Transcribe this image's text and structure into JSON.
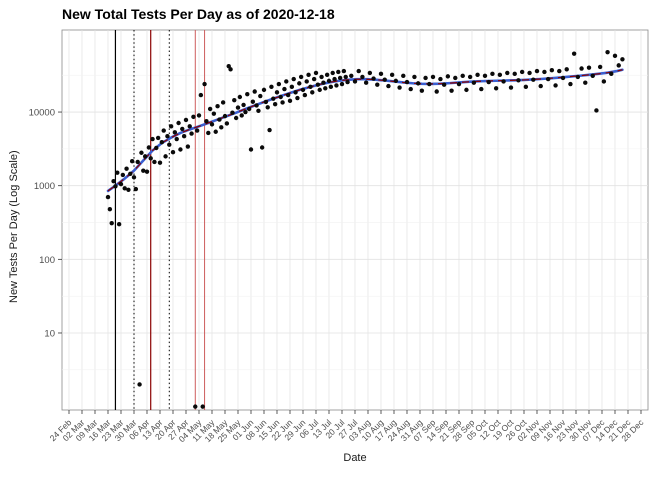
{
  "title": "New Total Tests Per Day as of 2020-12-18",
  "axes": {
    "x_label": "Date",
    "y_label": "New Tests Per Day (Log Scale)"
  },
  "colors": {
    "background": "#ffffff",
    "point": "#0a0a0a",
    "grid_major": "#e2e2e2",
    "grid_minor": "#f1f1f1",
    "panel_border": "#8a8a8a",
    "tick_mark": "#333333",
    "tick_text": "#4d4d4d",
    "smooth": "#3a5fd1",
    "overlay_dash": "#8b0000"
  },
  "chart_data": {
    "type": "scatter",
    "title": "New Total Tests Per Day as of 2020-12-18",
    "xlabel": "Date",
    "ylabel": "New Tests Per Day (Log Scale)",
    "y_scale": "log10",
    "ylim": [
      0.9,
      130000
    ],
    "grid": true,
    "legend": "none",
    "y_ticks": [
      {
        "value": 10,
        "label": "10"
      },
      {
        "value": 100,
        "label": "100"
      },
      {
        "value": 1000,
        "label": "1000"
      },
      {
        "value": 10000,
        "label": "10000"
      }
    ],
    "y_minor_grid": [
      3.162,
      31.62,
      316.2,
      3162,
      31623
    ],
    "x_range_days": [
      0,
      308
    ],
    "x_tick_step_days": 7,
    "x_tick_labels": [
      "24 Feb",
      "02 Mar",
      "09 Mar",
      "16 Mar",
      "23 Mar",
      "30 Mar",
      "06 Apr",
      "13 Apr",
      "20 Apr",
      "27 Apr",
      "04 May",
      "11 May",
      "18 May",
      "25 May",
      "01 Jun",
      "08 Jun",
      "15 Jun",
      "22 Jun",
      "29 Jun",
      "06 Jul",
      "13 Jul",
      "20 Jul",
      "27 Jul",
      "03 Aug",
      "10 Aug",
      "17 Aug",
      "24 Aug",
      "31 Aug",
      "07 Sep",
      "14 Sep",
      "21 Sep",
      "28 Sep",
      "05 Oct",
      "12 Oct",
      "19 Oct",
      "26 Oct",
      "02 Nov",
      "09 Nov",
      "16 Nov",
      "23 Nov",
      "30 Nov",
      "07 Dec",
      "14 Dec",
      "21 Dec",
      "28 Dec"
    ],
    "points_format": "[day_offset_from_24_Feb, new_tests_per_day]",
    "points": [
      [
        21,
        700
      ],
      [
        22,
        480
      ],
      [
        23,
        310
      ],
      [
        24,
        1150
      ],
      [
        25,
        980
      ],
      [
        26,
        1500
      ],
      [
        27,
        300
      ],
      [
        28,
        1050
      ],
      [
        29,
        1400
      ],
      [
        30,
        920
      ],
      [
        31,
        1700
      ],
      [
        32,
        880
      ],
      [
        33,
        1450
      ],
      [
        34,
        2150
      ],
      [
        35,
        1300
      ],
      [
        36,
        900
      ],
      [
        37,
        2100
      ],
      [
        38,
        2
      ],
      [
        39,
        2800
      ],
      [
        40,
        1600
      ],
      [
        41,
        2500
      ],
      [
        42,
        1550
      ],
      [
        43,
        3300
      ],
      [
        44,
        2350
      ],
      [
        45,
        4300
      ],
      [
        46,
        2100
      ],
      [
        47,
        3250
      ],
      [
        48,
        4450
      ],
      [
        49,
        2050
      ],
      [
        50,
        3900
      ],
      [
        51,
        5600
      ],
      [
        52,
        2500
      ],
      [
        53,
        4700
      ],
      [
        54,
        3600
      ],
      [
        55,
        6400
      ],
      [
        56,
        2850
      ],
      [
        57,
        5300
      ],
      [
        58,
        4300
      ],
      [
        59,
        7100
      ],
      [
        60,
        3100
      ],
      [
        61,
        5900
      ],
      [
        62,
        4700
      ],
      [
        63,
        7800
      ],
      [
        64,
        3400
      ],
      [
        65,
        6400
      ],
      [
        66,
        5100
      ],
      [
        67,
        8600
      ],
      [
        68,
        1
      ],
      [
        69,
        5600
      ],
      [
        70,
        9000
      ],
      [
        71,
        17000
      ],
      [
        72,
        1
      ],
      [
        73,
        24000
      ],
      [
        74,
        7500
      ],
      [
        75,
        5200
      ],
      [
        76,
        11000
      ],
      [
        77,
        6800
      ],
      [
        78,
        9500
      ],
      [
        79,
        5400
      ],
      [
        80,
        12000
      ],
      [
        81,
        7900
      ],
      [
        82,
        6200
      ],
      [
        83,
        13500
      ],
      [
        84,
        8800
      ],
      [
        85,
        7000
      ],
      [
        86,
        42000
      ],
      [
        87,
        38000
      ],
      [
        88,
        9800
      ],
      [
        89,
        14500
      ],
      [
        90,
        8300
      ],
      [
        91,
        11500
      ],
      [
        92,
        16000
      ],
      [
        93,
        9000
      ],
      [
        94,
        12500
      ],
      [
        95,
        10000
      ],
      [
        96,
        17500
      ],
      [
        97,
        11000
      ],
      [
        98,
        3100
      ],
      [
        99,
        13800
      ],
      [
        100,
        19000
      ],
      [
        101,
        12300
      ],
      [
        102,
        10400
      ],
      [
        103,
        16500
      ],
      [
        104,
        3300
      ],
      [
        105,
        20000
      ],
      [
        106,
        13700
      ],
      [
        107,
        11600
      ],
      [
        108,
        5700
      ],
      [
        109,
        22000
      ],
      [
        110,
        15200
      ],
      [
        111,
        12800
      ],
      [
        112,
        18500
      ],
      [
        113,
        24000
      ],
      [
        114,
        16000
      ],
      [
        115,
        13500
      ],
      [
        116,
        20500
      ],
      [
        117,
        26000
      ],
      [
        118,
        17000
      ],
      [
        119,
        14200
      ],
      [
        120,
        22000
      ],
      [
        121,
        28000
      ],
      [
        122,
        18500
      ],
      [
        123,
        15500
      ],
      [
        124,
        24500
      ],
      [
        125,
        30000
      ],
      [
        126,
        20000
      ],
      [
        127,
        17000
      ],
      [
        128,
        26000
      ],
      [
        129,
        32000
      ],
      [
        130,
        22000
      ],
      [
        131,
        18500
      ],
      [
        132,
        28000
      ],
      [
        133,
        34000
      ],
      [
        134,
        23500
      ],
      [
        135,
        20000
      ],
      [
        136,
        30000
      ],
      [
        137,
        25000
      ],
      [
        138,
        21000
      ],
      [
        139,
        32000
      ],
      [
        140,
        26500
      ],
      [
        141,
        22000
      ],
      [
        142,
        34000
      ],
      [
        143,
        28000
      ],
      [
        144,
        23000
      ],
      [
        145,
        35000
      ],
      [
        146,
        29000
      ],
      [
        147,
        24000
      ],
      [
        148,
        36000
      ],
      [
        149,
        30000
      ],
      [
        150,
        25500
      ],
      [
        152,
        31000
      ],
      [
        154,
        26000
      ],
      [
        156,
        36000
      ],
      [
        158,
        30000
      ],
      [
        160,
        25000
      ],
      [
        162,
        34000
      ],
      [
        164,
        28500
      ],
      [
        166,
        23500
      ],
      [
        168,
        33000
      ],
      [
        170,
        27500
      ],
      [
        172,
        22500
      ],
      [
        174,
        32000
      ],
      [
        176,
        26500
      ],
      [
        178,
        21500
      ],
      [
        180,
        31000
      ],
      [
        182,
        25500
      ],
      [
        184,
        20500
      ],
      [
        186,
        30000
      ],
      [
        188,
        24500
      ],
      [
        190,
        19500
      ],
      [
        192,
        29000
      ],
      [
        194,
        24000
      ],
      [
        196,
        30000
      ],
      [
        198,
        19000
      ],
      [
        200,
        28000
      ],
      [
        202,
        23500
      ],
      [
        204,
        30500
      ],
      [
        206,
        19500
      ],
      [
        208,
        29000
      ],
      [
        210,
        24000
      ],
      [
        212,
        31000
      ],
      [
        214,
        20000
      ],
      [
        216,
        30000
      ],
      [
        218,
        25000
      ],
      [
        220,
        32000
      ],
      [
        222,
        20500
      ],
      [
        224,
        31000
      ],
      [
        226,
        25500
      ],
      [
        228,
        33000
      ],
      [
        230,
        21000
      ],
      [
        232,
        32000
      ],
      [
        234,
        26000
      ],
      [
        236,
        34000
      ],
      [
        238,
        21500
      ],
      [
        240,
        33000
      ],
      [
        242,
        27000
      ],
      [
        244,
        35000
      ],
      [
        246,
        22000
      ],
      [
        248,
        34000
      ],
      [
        250,
        27500
      ],
      [
        252,
        36000
      ],
      [
        254,
        22500
      ],
      [
        256,
        35000
      ],
      [
        258,
        28000
      ],
      [
        260,
        37000
      ],
      [
        262,
        23000
      ],
      [
        264,
        36000
      ],
      [
        266,
        29000
      ],
      [
        268,
        38000
      ],
      [
        270,
        24000
      ],
      [
        272,
        62000
      ],
      [
        274,
        30000
      ],
      [
        276,
        39000
      ],
      [
        278,
        25000
      ],
      [
        280,
        40000
      ],
      [
        282,
        31000
      ],
      [
        284,
        10500
      ],
      [
        286,
        41000
      ],
      [
        288,
        26000
      ],
      [
        290,
        65000
      ],
      [
        292,
        33000
      ],
      [
        294,
        58000
      ],
      [
        296,
        43000
      ],
      [
        298,
        52000
      ]
    ],
    "smooth_line": {
      "name": "loess-smooth",
      "color": "#3a5fd1",
      "points": [
        [
          21,
          850
        ],
        [
          25,
          1000
        ],
        [
          30,
          1250
        ],
        [
          35,
          1600
        ],
        [
          40,
          2200
        ],
        [
          45,
          3000
        ],
        [
          50,
          3800
        ],
        [
          55,
          4500
        ],
        [
          60,
          5200
        ],
        [
          65,
          5800
        ],
        [
          70,
          6400
        ],
        [
          75,
          7100
        ],
        [
          80,
          7900
        ],
        [
          85,
          8800
        ],
        [
          90,
          9800
        ],
        [
          95,
          11000
        ],
        [
          100,
          12300
        ],
        [
          105,
          13700
        ],
        [
          110,
          15200
        ],
        [
          115,
          16800
        ],
        [
          120,
          18500
        ],
        [
          125,
          20300
        ],
        [
          130,
          22000
        ],
        [
          135,
          23700
        ],
        [
          140,
          25200
        ],
        [
          145,
          26500
        ],
        [
          150,
          27400
        ],
        [
          155,
          27900
        ],
        [
          160,
          27900
        ],
        [
          165,
          27500
        ],
        [
          170,
          26800
        ],
        [
          175,
          26000
        ],
        [
          180,
          25200
        ],
        [
          185,
          24600
        ],
        [
          190,
          24200
        ],
        [
          195,
          24100
        ],
        [
          200,
          24300
        ],
        [
          205,
          24700
        ],
        [
          210,
          25200
        ],
        [
          215,
          25700
        ],
        [
          220,
          26100
        ],
        [
          225,
          26400
        ],
        [
          230,
          26600
        ],
        [
          235,
          26800
        ],
        [
          240,
          27000
        ],
        [
          245,
          27300
        ],
        [
          250,
          27700
        ],
        [
          255,
          28200
        ],
        [
          260,
          28800
        ],
        [
          265,
          29500
        ],
        [
          270,
          30300
        ],
        [
          275,
          31100
        ],
        [
          280,
          32000
        ],
        [
          285,
          33000
        ],
        [
          290,
          34200
        ],
        [
          295,
          36000
        ],
        [
          298,
          37500
        ]
      ]
    },
    "overlay_line": {
      "name": "dashed-fit",
      "color": "#8b0000",
      "style": "dashed",
      "follows_smooth": true
    },
    "reference_lines": [
      {
        "day": 25,
        "style": "solid",
        "color": "#000000",
        "width": 1.2
      },
      {
        "day": 35,
        "style": "dotted",
        "color": "#000000",
        "width": 1.0
      },
      {
        "day": 44,
        "style": "solid",
        "color": "#8b0000",
        "width": 1.2
      },
      {
        "day": 54,
        "style": "dotted",
        "color": "#000000",
        "width": 1.0
      },
      {
        "day": 68,
        "style": "solid",
        "color": "#cd5c5c",
        "width": 1.0
      },
      {
        "day": 73,
        "style": "solid",
        "color": "#cd5c5c",
        "width": 1.0
      }
    ]
  }
}
